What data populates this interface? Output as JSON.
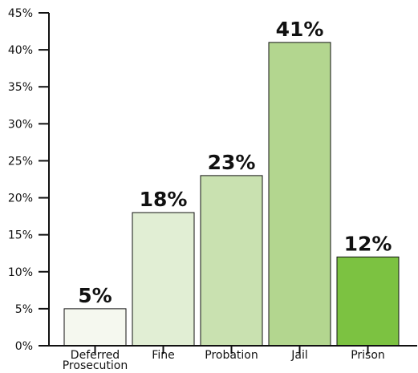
{
  "chart_data": {
    "type": "bar",
    "categories": [
      [
        "Deferred",
        "Prosecution"
      ],
      [
        "Fine"
      ],
      [
        "Probation"
      ],
      [
        "Jail"
      ],
      [
        "Prison"
      ]
    ],
    "values": [
      5,
      18,
      23,
      41,
      12
    ],
    "value_labels": [
      "5%",
      "18%",
      "23%",
      "41%",
      "12%"
    ],
    "bar_colors": [
      "#f5f8ef",
      "#e1eed4",
      "#c9e1b0",
      "#b3d68f",
      "#7cc241"
    ],
    "y_ticks": [
      "0%",
      "5%",
      "10%",
      "15%",
      "20%",
      "25%",
      "30%",
      "35%",
      "40%",
      "45%"
    ],
    "ylim": [
      0,
      45
    ],
    "title": "",
    "xlabel": "",
    "ylabel": "",
    "grid": false,
    "legend": "none"
  }
}
